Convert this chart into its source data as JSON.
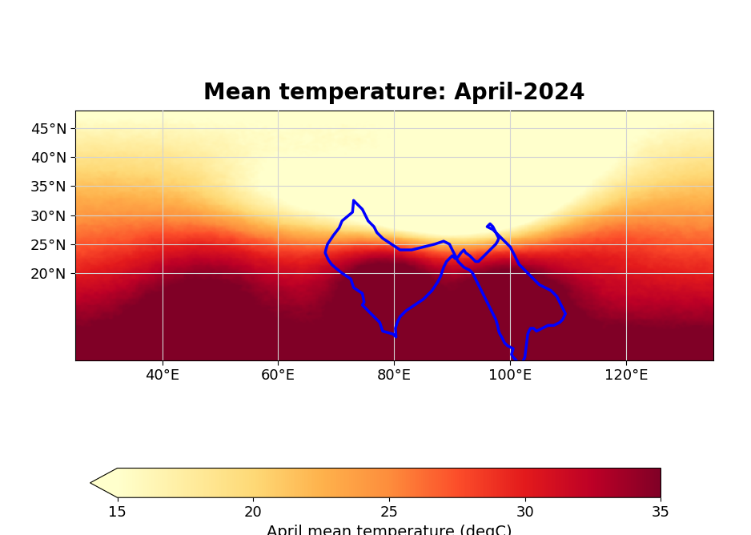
{
  "title": "Mean temperature: April-2024",
  "colorbar_label": "April mean temperature (degC)",
  "cmap": "YlOrRd",
  "vmin": 15,
  "vmax": 35,
  "extent_lon": [
    25,
    135
  ],
  "extent_lat": [
    5,
    48
  ],
  "lon_ticks": [
    40,
    60,
    80,
    100,
    120
  ],
  "lat_ticks": [
    20,
    25,
    30,
    35,
    40,
    45
  ],
  "colorbar_ticks": [
    15,
    20,
    25,
    30,
    35
  ],
  "title_fontsize": 20,
  "tick_fontsize": 13,
  "colorbar_label_fontsize": 14,
  "fig_width": 9.38,
  "fig_height": 6.68,
  "dpi": 100
}
